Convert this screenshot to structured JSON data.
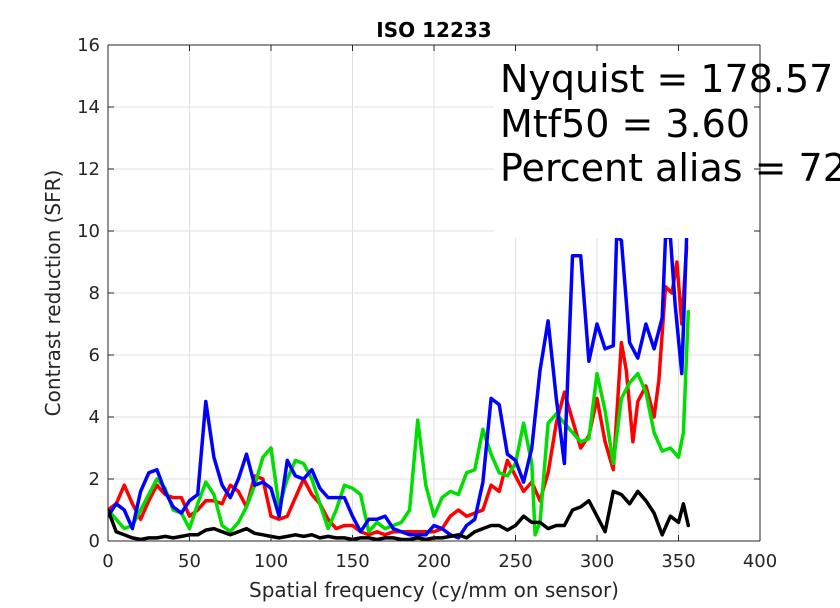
{
  "chart_data": {
    "type": "line",
    "title": "ISO 12233",
    "xlabel": "Spatial frequency (cy/mm on sensor)",
    "ylabel": "Contrast reduction (SFR)",
    "xlim": [
      0,
      400
    ],
    "ylim": [
      0,
      16
    ],
    "xticks": [
      "0",
      "50",
      "100",
      "150",
      "200",
      "250",
      "300",
      "350",
      "400"
    ],
    "yticks": [
      "0",
      "2",
      "4",
      "6",
      "8",
      "10",
      "12",
      "14",
      "16"
    ],
    "grid": true,
    "annotations": [
      "Nyquist = 178.57",
      "Mtf50 = 3.60",
      "Percent alias = 72"
    ],
    "series": [
      {
        "color": "#ff0000",
        "points": [
          [
            0,
            1.0
          ],
          [
            5,
            1.2
          ],
          [
            10,
            1.8
          ],
          [
            15,
            1.2
          ],
          [
            20,
            0.7
          ],
          [
            25,
            1.3
          ],
          [
            30,
            1.8
          ],
          [
            35,
            1.5
          ],
          [
            40,
            1.4
          ],
          [
            45,
            1.4
          ],
          [
            50,
            0.8
          ],
          [
            55,
            1.0
          ],
          [
            60,
            1.3
          ],
          [
            65,
            1.3
          ],
          [
            70,
            1.2
          ],
          [
            75,
            1.8
          ],
          [
            80,
            1.6
          ],
          [
            85,
            1.1
          ],
          [
            90,
            2.1
          ],
          [
            95,
            2.0
          ],
          [
            100,
            0.8
          ],
          [
            105,
            0.7
          ],
          [
            110,
            0.8
          ],
          [
            115,
            1.4
          ],
          [
            120,
            2.0
          ],
          [
            125,
            1.5
          ],
          [
            130,
            1.2
          ],
          [
            135,
            0.7
          ],
          [
            140,
            0.4
          ],
          [
            145,
            0.5
          ],
          [
            150,
            0.5
          ],
          [
            155,
            0.3
          ],
          [
            160,
            0.2
          ],
          [
            165,
            0.3
          ],
          [
            170,
            0.2
          ],
          [
            175,
            0.3
          ],
          [
            180,
            0.3
          ],
          [
            185,
            0.3
          ],
          [
            190,
            0.3
          ],
          [
            195,
            0.3
          ],
          [
            200,
            0.3
          ],
          [
            205,
            0.4
          ],
          [
            210,
            0.8
          ],
          [
            215,
            1.0
          ],
          [
            220,
            0.8
          ],
          [
            225,
            0.9
          ],
          [
            230,
            1.0
          ],
          [
            235,
            1.8
          ],
          [
            240,
            1.6
          ],
          [
            245,
            2.6
          ],
          [
            250,
            2.1
          ],
          [
            255,
            1.6
          ],
          [
            260,
            1.9
          ],
          [
            265,
            1.3
          ],
          [
            270,
            2.2
          ],
          [
            275,
            3.8
          ],
          [
            280,
            4.8
          ],
          [
            285,
            3.9
          ],
          [
            290,
            3.0
          ],
          [
            295,
            3.4
          ],
          [
            300,
            4.6
          ],
          [
            305,
            3.2
          ],
          [
            310,
            2.3
          ],
          [
            315,
            6.4
          ],
          [
            318,
            5.5
          ],
          [
            322,
            3.2
          ],
          [
            325,
            4.5
          ],
          [
            330,
            5.0
          ],
          [
            335,
            4.0
          ],
          [
            338,
            5.2
          ],
          [
            342,
            8.2
          ],
          [
            346,
            8.0
          ],
          [
            349,
            9.0
          ],
          [
            352,
            7.0
          ],
          [
            355,
            9.5
          ]
        ]
      },
      {
        "color": "#00dd00",
        "points": [
          [
            0,
            1.0
          ],
          [
            5,
            0.7
          ],
          [
            10,
            0.4
          ],
          [
            15,
            0.5
          ],
          [
            20,
            1.0
          ],
          [
            25,
            1.5
          ],
          [
            30,
            2.0
          ],
          [
            35,
            1.7
          ],
          [
            40,
            1.0
          ],
          [
            45,
            0.9
          ],
          [
            50,
            0.4
          ],
          [
            55,
            1.2
          ],
          [
            60,
            1.9
          ],
          [
            65,
            1.5
          ],
          [
            70,
            0.5
          ],
          [
            75,
            0.3
          ],
          [
            80,
            0.6
          ],
          [
            85,
            1.1
          ],
          [
            90,
            1.8
          ],
          [
            95,
            2.7
          ],
          [
            100,
            3.0
          ],
          [
            105,
            1.1
          ],
          [
            110,
            2.0
          ],
          [
            115,
            2.6
          ],
          [
            120,
            2.5
          ],
          [
            125,
            2.0
          ],
          [
            130,
            1.2
          ],
          [
            135,
            0.4
          ],
          [
            140,
            1.0
          ],
          [
            145,
            1.8
          ],
          [
            150,
            1.7
          ],
          [
            155,
            1.5
          ],
          [
            160,
            0.3
          ],
          [
            165,
            0.6
          ],
          [
            170,
            0.4
          ],
          [
            175,
            0.5
          ],
          [
            180,
            0.6
          ],
          [
            185,
            1.0
          ],
          [
            190,
            3.9
          ],
          [
            195,
            1.8
          ],
          [
            200,
            0.8
          ],
          [
            205,
            1.4
          ],
          [
            210,
            1.6
          ],
          [
            215,
            1.5
          ],
          [
            220,
            2.2
          ],
          [
            225,
            2.3
          ],
          [
            230,
            3.6
          ],
          [
            235,
            2.8
          ],
          [
            240,
            2.2
          ],
          [
            245,
            2.1
          ],
          [
            250,
            2.5
          ],
          [
            255,
            3.8
          ],
          [
            260,
            2.5
          ],
          [
            262,
            0.2
          ],
          [
            265,
            0.6
          ],
          [
            270,
            3.8
          ],
          [
            275,
            4.1
          ],
          [
            280,
            3.8
          ],
          [
            285,
            3.5
          ],
          [
            290,
            3.2
          ],
          [
            295,
            3.3
          ],
          [
            300,
            5.4
          ],
          [
            305,
            4.2
          ],
          [
            310,
            2.5
          ],
          [
            315,
            4.6
          ],
          [
            320,
            5.1
          ],
          [
            325,
            5.4
          ],
          [
            330,
            4.8
          ],
          [
            335,
            3.5
          ],
          [
            340,
            2.9
          ],
          [
            345,
            3.0
          ],
          [
            350,
            2.7
          ],
          [
            353,
            3.5
          ],
          [
            356,
            7.4
          ]
        ]
      },
      {
        "color": "#0000ff",
        "points": [
          [
            0,
            0.8
          ],
          [
            5,
            1.2
          ],
          [
            10,
            1.0
          ],
          [
            15,
            0.4
          ],
          [
            20,
            1.6
          ],
          [
            25,
            2.2
          ],
          [
            30,
            2.3
          ],
          [
            35,
            1.6
          ],
          [
            40,
            1.1
          ],
          [
            45,
            0.9
          ],
          [
            50,
            1.3
          ],
          [
            55,
            1.5
          ],
          [
            60,
            4.5
          ],
          [
            65,
            2.7
          ],
          [
            70,
            1.8
          ],
          [
            75,
            1.4
          ],
          [
            80,
            2.0
          ],
          [
            85,
            2.8
          ],
          [
            90,
            1.8
          ],
          [
            95,
            1.9
          ],
          [
            100,
            1.7
          ],
          [
            105,
            0.8
          ],
          [
            110,
            2.6
          ],
          [
            115,
            2.1
          ],
          [
            120,
            2.0
          ],
          [
            125,
            2.3
          ],
          [
            130,
            1.7
          ],
          [
            135,
            1.4
          ],
          [
            140,
            1.4
          ],
          [
            145,
            1.4
          ],
          [
            150,
            0.8
          ],
          [
            155,
            0.3
          ],
          [
            160,
            0.7
          ],
          [
            165,
            0.7
          ],
          [
            170,
            0.8
          ],
          [
            175,
            0.4
          ],
          [
            180,
            0.3
          ],
          [
            185,
            0.2
          ],
          [
            190,
            0.2
          ],
          [
            195,
            0.2
          ],
          [
            200,
            0.5
          ],
          [
            205,
            0.4
          ],
          [
            210,
            0.2
          ],
          [
            215,
            0.1
          ],
          [
            220,
            0.5
          ],
          [
            225,
            0.7
          ],
          [
            230,
            1.9
          ],
          [
            235,
            4.6
          ],
          [
            240,
            4.4
          ],
          [
            245,
            2.8
          ],
          [
            250,
            2.6
          ],
          [
            255,
            1.9
          ],
          [
            260,
            3.0
          ],
          [
            265,
            5.5
          ],
          [
            270,
            7.1
          ],
          [
            275,
            4.6
          ],
          [
            280,
            2.5
          ],
          [
            285,
            9.2
          ],
          [
            290,
            9.2
          ],
          [
            295,
            5.8
          ],
          [
            300,
            7.0
          ],
          [
            305,
            6.2
          ],
          [
            310,
            6.3
          ],
          [
            312,
            9.8
          ],
          [
            315,
            9.7
          ],
          [
            320,
            6.4
          ],
          [
            325,
            5.9
          ],
          [
            330,
            7.0
          ],
          [
            335,
            6.2
          ],
          [
            340,
            7.2
          ],
          [
            342,
            9.8
          ],
          [
            345,
            9.8
          ],
          [
            348,
            7.6
          ],
          [
            352,
            5.4
          ],
          [
            355,
            9.8
          ]
        ]
      },
      {
        "color": "#000000",
        "points": [
          [
            0,
            1.0
          ],
          [
            5,
            0.3
          ],
          [
            10,
            0.2
          ],
          [
            15,
            0.1
          ],
          [
            20,
            0.05
          ],
          [
            25,
            0.1
          ],
          [
            30,
            0.1
          ],
          [
            35,
            0.15
          ],
          [
            40,
            0.1
          ],
          [
            45,
            0.15
          ],
          [
            50,
            0.2
          ],
          [
            55,
            0.2
          ],
          [
            60,
            0.35
          ],
          [
            65,
            0.4
          ],
          [
            70,
            0.3
          ],
          [
            75,
            0.2
          ],
          [
            80,
            0.3
          ],
          [
            85,
            0.4
          ],
          [
            90,
            0.25
          ],
          [
            95,
            0.2
          ],
          [
            100,
            0.15
          ],
          [
            105,
            0.1
          ],
          [
            110,
            0.15
          ],
          [
            115,
            0.2
          ],
          [
            120,
            0.15
          ],
          [
            125,
            0.2
          ],
          [
            130,
            0.1
          ],
          [
            135,
            0.15
          ],
          [
            140,
            0.1
          ],
          [
            145,
            0.1
          ],
          [
            150,
            0.05
          ],
          [
            155,
            0.1
          ],
          [
            160,
            0.1
          ],
          [
            165,
            0.05
          ],
          [
            170,
            0.1
          ],
          [
            175,
            0.1
          ],
          [
            180,
            0.05
          ],
          [
            185,
            0.05
          ],
          [
            190,
            0.1
          ],
          [
            195,
            0.05
          ],
          [
            200,
            0.1
          ],
          [
            205,
            0.1
          ],
          [
            210,
            0.15
          ],
          [
            215,
            0.2
          ],
          [
            220,
            0.1
          ],
          [
            225,
            0.3
          ],
          [
            230,
            0.4
          ],
          [
            235,
            0.5
          ],
          [
            240,
            0.5
          ],
          [
            245,
            0.35
          ],
          [
            250,
            0.5
          ],
          [
            255,
            0.8
          ],
          [
            260,
            0.6
          ],
          [
            265,
            0.6
          ],
          [
            270,
            0.4
          ],
          [
            275,
            0.5
          ],
          [
            280,
            0.5
          ],
          [
            285,
            1.0
          ],
          [
            290,
            1.1
          ],
          [
            295,
            1.3
          ],
          [
            300,
            0.8
          ],
          [
            305,
            0.3
          ],
          [
            310,
            1.6
          ],
          [
            315,
            1.5
          ],
          [
            320,
            1.2
          ],
          [
            325,
            1.6
          ],
          [
            330,
            1.3
          ],
          [
            335,
            0.9
          ],
          [
            340,
            0.2
          ],
          [
            345,
            0.8
          ],
          [
            350,
            0.6
          ],
          [
            353,
            1.2
          ],
          [
            356,
            0.5
          ]
        ]
      }
    ]
  }
}
